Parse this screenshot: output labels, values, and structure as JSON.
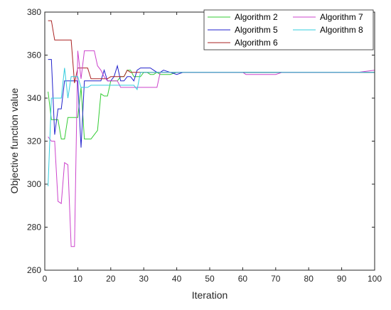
{
  "chart_data": {
    "type": "line",
    "title": "",
    "xlabel": "Iteration",
    "ylabel": "Objective function value",
    "xlim": [
      0,
      100
    ],
    "ylim": [
      260,
      380
    ],
    "xticks": [
      "0",
      "10",
      "20",
      "30",
      "40",
      "50",
      "60",
      "70",
      "80",
      "90",
      "100"
    ],
    "yticks": [
      "260",
      "280",
      "300",
      "320",
      "340",
      "360",
      "380"
    ],
    "grid": false,
    "legend_position": "top-right",
    "series": [
      {
        "name": "Algorithm 2",
        "color": "#33cc33",
        "points": [
          [
            1,
            343
          ],
          [
            2,
            330
          ],
          [
            3,
            330
          ],
          [
            4,
            330
          ],
          [
            5,
            321
          ],
          [
            6,
            321
          ],
          [
            7,
            331
          ],
          [
            8,
            331
          ],
          [
            9,
            331
          ],
          [
            10,
            331
          ],
          [
            11,
            345
          ],
          [
            12,
            321
          ],
          [
            13,
            321
          ],
          [
            14,
            321
          ],
          [
            15,
            323
          ],
          [
            16,
            325
          ],
          [
            17,
            342
          ],
          [
            18,
            341
          ],
          [
            19,
            341
          ],
          [
            20,
            348
          ],
          [
            21,
            348
          ],
          [
            22,
            348
          ],
          [
            23,
            350
          ],
          [
            24,
            350
          ],
          [
            25,
            353
          ],
          [
            26,
            353
          ],
          [
            27,
            350
          ],
          [
            28,
            350
          ],
          [
            29,
            350
          ],
          [
            30,
            352
          ],
          [
            31,
            352
          ],
          [
            32,
            351
          ],
          [
            33,
            351
          ],
          [
            34,
            352
          ],
          [
            35,
            351
          ],
          [
            36,
            351
          ],
          [
            37,
            351
          ],
          [
            38,
            351
          ],
          [
            40,
            352
          ],
          [
            45,
            352
          ],
          [
            50,
            352
          ],
          [
            55,
            352
          ],
          [
            60,
            352
          ],
          [
            65,
            352
          ],
          [
            70,
            352
          ],
          [
            75,
            352
          ],
          [
            80,
            352
          ],
          [
            85,
            352
          ],
          [
            90,
            352
          ],
          [
            95,
            352
          ],
          [
            100,
            352
          ]
        ]
      },
      {
        "name": "Algorithm 5",
        "color": "#2222cc",
        "points": [
          [
            1,
            358
          ],
          [
            2,
            358
          ],
          [
            3,
            323
          ],
          [
            4,
            335
          ],
          [
            5,
            335
          ],
          [
            6,
            348
          ],
          [
            7,
            348
          ],
          [
            8,
            348
          ],
          [
            9,
            348
          ],
          [
            10,
            348
          ],
          [
            11,
            317
          ],
          [
            12,
            348
          ],
          [
            13,
            348
          ],
          [
            14,
            348
          ],
          [
            15,
            348
          ],
          [
            16,
            348
          ],
          [
            17,
            348
          ],
          [
            18,
            353
          ],
          [
            19,
            348
          ],
          [
            20,
            348
          ],
          [
            21,
            350
          ],
          [
            22,
            355
          ],
          [
            23,
            348
          ],
          [
            24,
            348
          ],
          [
            25,
            350
          ],
          [
            26,
            350
          ],
          [
            27,
            348
          ],
          [
            28,
            353
          ],
          [
            29,
            354
          ],
          [
            30,
            354
          ],
          [
            31,
            354
          ],
          [
            32,
            354
          ],
          [
            33,
            353
          ],
          [
            34,
            352
          ],
          [
            35,
            352
          ],
          [
            36,
            353
          ],
          [
            38,
            352
          ],
          [
            40,
            351
          ],
          [
            42,
            352
          ],
          [
            45,
            352
          ],
          [
            50,
            352
          ],
          [
            55,
            352
          ],
          [
            60,
            352
          ],
          [
            62,
            352
          ],
          [
            65,
            352
          ],
          [
            70,
            352
          ],
          [
            75,
            352
          ],
          [
            80,
            352
          ],
          [
            85,
            352
          ],
          [
            90,
            352
          ],
          [
            95,
            352
          ],
          [
            100,
            352
          ]
        ]
      },
      {
        "name": "Algorithm 6",
        "color": "#aa2222",
        "points": [
          [
            1,
            376
          ],
          [
            2,
            376
          ],
          [
            3,
            367
          ],
          [
            4,
            367
          ],
          [
            5,
            367
          ],
          [
            6,
            367
          ],
          [
            7,
            367
          ],
          [
            8,
            367
          ],
          [
            9,
            347
          ],
          [
            10,
            354
          ],
          [
            11,
            354
          ],
          [
            12,
            354
          ],
          [
            13,
            354
          ],
          [
            14,
            349
          ],
          [
            15,
            349
          ],
          [
            16,
            349
          ],
          [
            17,
            349
          ],
          [
            18,
            349
          ],
          [
            19,
            349
          ],
          [
            20,
            350
          ],
          [
            21,
            350
          ],
          [
            22,
            350
          ],
          [
            23,
            350
          ],
          [
            24,
            350
          ],
          [
            25,
            353
          ],
          [
            26,
            352
          ],
          [
            27,
            352
          ],
          [
            28,
            352
          ],
          [
            29,
            352
          ],
          [
            30,
            352
          ],
          [
            32,
            352
          ],
          [
            35,
            352
          ],
          [
            40,
            352
          ],
          [
            45,
            352
          ],
          [
            50,
            352
          ],
          [
            55,
            352
          ],
          [
            60,
            352
          ],
          [
            65,
            352
          ],
          [
            70,
            352
          ],
          [
            75,
            352
          ],
          [
            80,
            352
          ],
          [
            85,
            352
          ],
          [
            90,
            352
          ],
          [
            95,
            352
          ],
          [
            100,
            352
          ]
        ]
      },
      {
        "name": "Algorithm 7",
        "color": "#cc44cc",
        "points": [
          [
            1,
            322
          ],
          [
            2,
            320
          ],
          [
            3,
            320
          ],
          [
            4,
            292
          ],
          [
            5,
            291
          ],
          [
            6,
            310
          ],
          [
            7,
            309
          ],
          [
            8,
            271
          ],
          [
            9,
            271
          ],
          [
            10,
            362
          ],
          [
            11,
            349
          ],
          [
            12,
            362
          ],
          [
            13,
            362
          ],
          [
            14,
            362
          ],
          [
            15,
            362
          ],
          [
            16,
            355
          ],
          [
            17,
            353
          ],
          [
            18,
            350
          ],
          [
            19,
            348
          ],
          [
            20,
            348
          ],
          [
            21,
            348
          ],
          [
            22,
            348
          ],
          [
            23,
            345
          ],
          [
            24,
            345
          ],
          [
            25,
            345
          ],
          [
            26,
            345
          ],
          [
            27,
            345
          ],
          [
            28,
            345
          ],
          [
            29,
            345
          ],
          [
            30,
            345
          ],
          [
            31,
            345
          ],
          [
            32,
            345
          ],
          [
            33,
            345
          ],
          [
            34,
            345
          ],
          [
            35,
            352
          ],
          [
            40,
            352
          ],
          [
            45,
            352
          ],
          [
            50,
            352
          ],
          [
            55,
            352
          ],
          [
            60,
            352
          ],
          [
            61,
            351
          ],
          [
            62,
            351
          ],
          [
            65,
            351
          ],
          [
            70,
            351
          ],
          [
            72,
            352
          ],
          [
            75,
            352
          ],
          [
            80,
            352
          ],
          [
            85,
            352
          ],
          [
            90,
            352
          ],
          [
            95,
            352
          ],
          [
            100,
            353
          ]
        ]
      },
      {
        "name": "Algorithm 8",
        "color": "#33ccdd",
        "points": [
          [
            1,
            299
          ],
          [
            2,
            340
          ],
          [
            3,
            340
          ],
          [
            4,
            340
          ],
          [
            5,
            340
          ],
          [
            6,
            354
          ],
          [
            7,
            340
          ],
          [
            8,
            350
          ],
          [
            9,
            350
          ],
          [
            10,
            350
          ],
          [
            11,
            345
          ],
          [
            12,
            345
          ],
          [
            13,
            345
          ],
          [
            14,
            346
          ],
          [
            15,
            346
          ],
          [
            16,
            346
          ],
          [
            17,
            346
          ],
          [
            18,
            346
          ],
          [
            19,
            346
          ],
          [
            20,
            346
          ],
          [
            21,
            346
          ],
          [
            22,
            346
          ],
          [
            23,
            346
          ],
          [
            24,
            346
          ],
          [
            25,
            346
          ],
          [
            26,
            346
          ],
          [
            27,
            346
          ],
          [
            28,
            344
          ],
          [
            29,
            352
          ],
          [
            30,
            352
          ],
          [
            31,
            352
          ],
          [
            32,
            352
          ],
          [
            35,
            352
          ],
          [
            40,
            352
          ],
          [
            45,
            352
          ],
          [
            50,
            352
          ],
          [
            55,
            352
          ],
          [
            60,
            352
          ],
          [
            65,
            352
          ],
          [
            70,
            352
          ],
          [
            75,
            352
          ],
          [
            80,
            352
          ],
          [
            85,
            352
          ],
          [
            90,
            352
          ],
          [
            95,
            352
          ],
          [
            100,
            352
          ]
        ]
      }
    ]
  }
}
